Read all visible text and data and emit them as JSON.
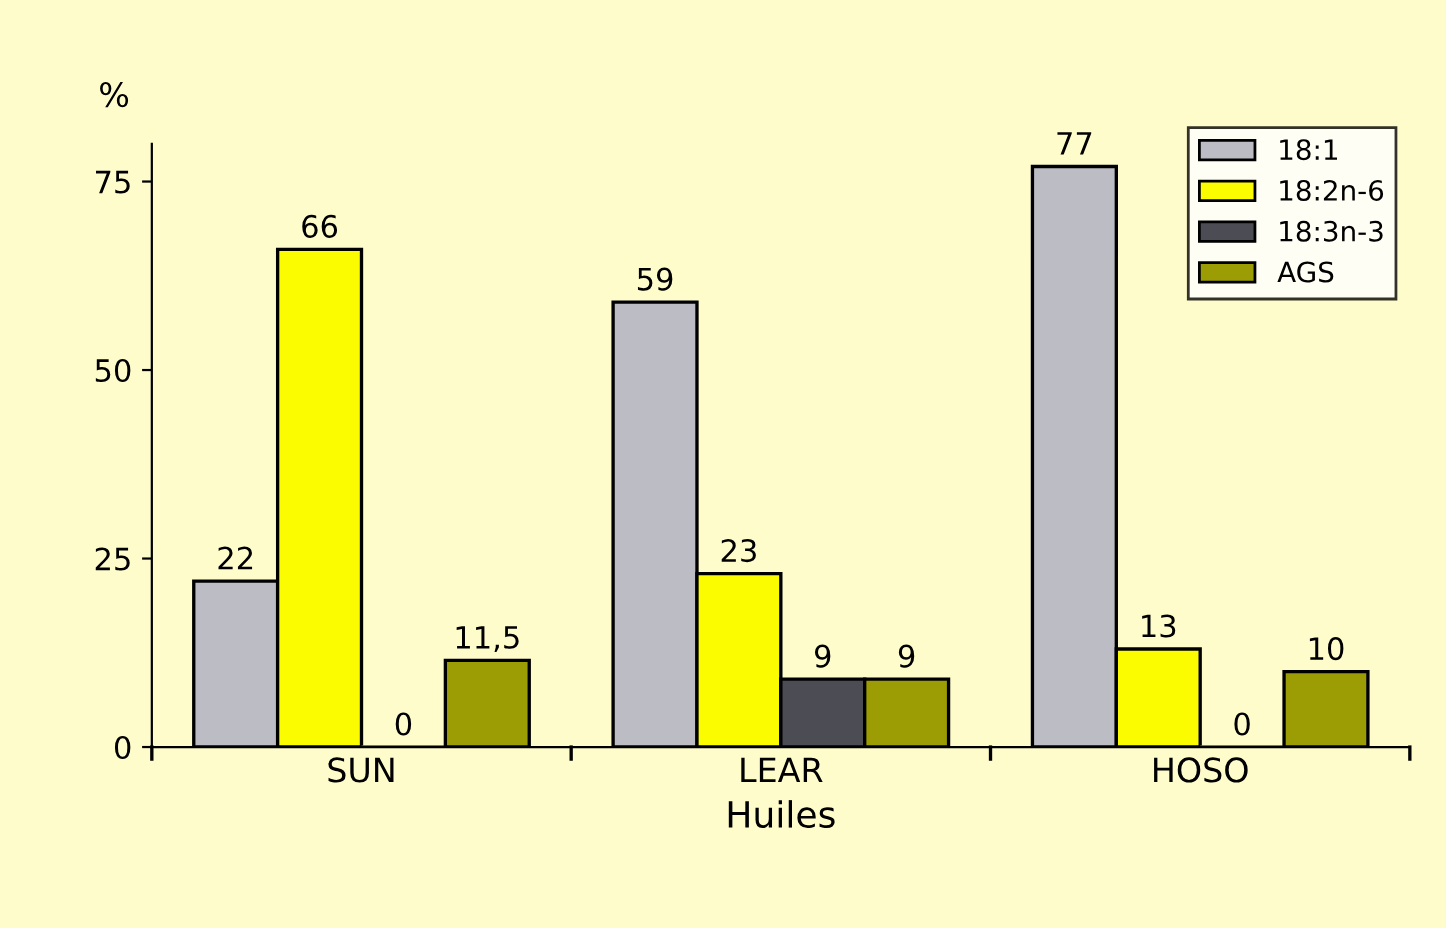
{
  "chart_data": {
    "type": "bar",
    "xlabel": "Huiles",
    "ylabel": "%",
    "categories": [
      "SUN",
      "LEAR",
      "HOSO"
    ],
    "series": [
      {
        "name": "18:1",
        "color": "#bcbcc4",
        "values": [
          22,
          59,
          77
        ],
        "value_labels": [
          "22",
          "59",
          "77"
        ]
      },
      {
        "name": "18:2n-6",
        "color": "#fcfc00",
        "values": [
          66,
          23,
          13
        ],
        "value_labels": [
          "66",
          "23",
          "13"
        ]
      },
      {
        "name": "18:3n-3",
        "color": "#4c4c54",
        "values": [
          0,
          9,
          0
        ],
        "value_labels": [
          "0",
          "9",
          "0"
        ]
      },
      {
        "name": "AGS",
        "color": "#9c9c04",
        "values": [
          11.5,
          9,
          10
        ],
        "value_labels": [
          "11,5",
          "9",
          "10"
        ]
      }
    ],
    "ylim": [
      0,
      80
    ],
    "yticks": [
      0,
      25,
      50,
      75
    ],
    "grid": false,
    "legend": "top right"
  }
}
